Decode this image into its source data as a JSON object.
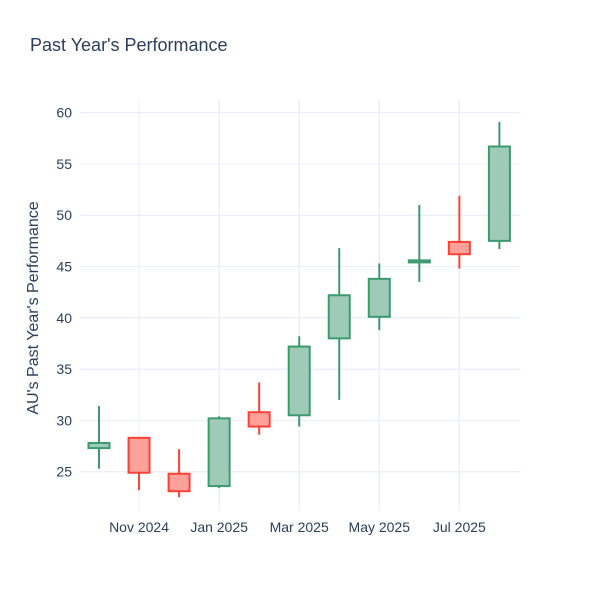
{
  "chart_data": {
    "type": "candlestick",
    "title": "Past Year's Performance",
    "ylabel": "AU's Past Year's Performance",
    "xlabel": "",
    "categories": [
      "Oct 2024",
      "Nov 2024",
      "Dec 2024",
      "Jan 2025",
      "Feb 2025",
      "Mar 2025",
      "Apr 2025",
      "May 2025",
      "Jun 2025",
      "Jul 2025",
      "Aug 2025"
    ],
    "ohlc": [
      {
        "month": "Oct 2024",
        "open": 27.3,
        "high": 31.4,
        "low": 25.3,
        "close": 27.8,
        "direction": "increasing"
      },
      {
        "month": "Nov 2024",
        "open": 28.3,
        "high": 28.3,
        "low": 23.2,
        "close": 24.9,
        "direction": "decreasing"
      },
      {
        "month": "Dec 2024",
        "open": 24.8,
        "high": 27.2,
        "low": 22.5,
        "close": 23.1,
        "direction": "decreasing"
      },
      {
        "month": "Jan 2025",
        "open": 23.6,
        "high": 30.4,
        "low": 23.4,
        "close": 30.2,
        "direction": "increasing"
      },
      {
        "month": "Feb 2025",
        "open": 30.8,
        "high": 33.7,
        "low": 28.6,
        "close": 29.4,
        "direction": "decreasing"
      },
      {
        "month": "Mar 2025",
        "open": 30.5,
        "high": 38.2,
        "low": 29.4,
        "close": 37.2,
        "direction": "increasing"
      },
      {
        "month": "Apr 2025",
        "open": 38.0,
        "high": 46.8,
        "low": 32.0,
        "close": 42.2,
        "direction": "increasing"
      },
      {
        "month": "May 2025",
        "open": 40.1,
        "high": 45.3,
        "low": 38.8,
        "close": 43.8,
        "direction": "increasing"
      },
      {
        "month": "Jun 2025",
        "open": 45.4,
        "high": 51.0,
        "low": 43.5,
        "close": 45.6,
        "direction": "increasing"
      },
      {
        "month": "Jul 2025",
        "open": 47.4,
        "high": 51.9,
        "low": 44.8,
        "close": 46.2,
        "direction": "decreasing"
      },
      {
        "month": "Aug 2025",
        "open": 47.5,
        "high": 59.1,
        "low": 46.7,
        "close": 56.7,
        "direction": "increasing"
      }
    ],
    "ytick_values": [
      25,
      30,
      35,
      40,
      45,
      50,
      55,
      60
    ],
    "xtick_labels": [
      "Nov 2024",
      "Jan 2025",
      "Mar 2025",
      "May 2025",
      "Jul 2025"
    ],
    "xtick_month_indices": [
      1,
      3,
      5,
      7,
      9
    ],
    "ylim": [
      21.2,
      61.3
    ],
    "grid": true,
    "legend": "none",
    "colors": {
      "increasing_line": "#3D9970",
      "increasing_fill": "#9ECBB7",
      "decreasing_line": "#FF4136",
      "decreasing_fill": "#FFA09A",
      "grid": "#EBF0F8",
      "text": "#2A3F5F",
      "background": "#FFFFFF"
    }
  }
}
